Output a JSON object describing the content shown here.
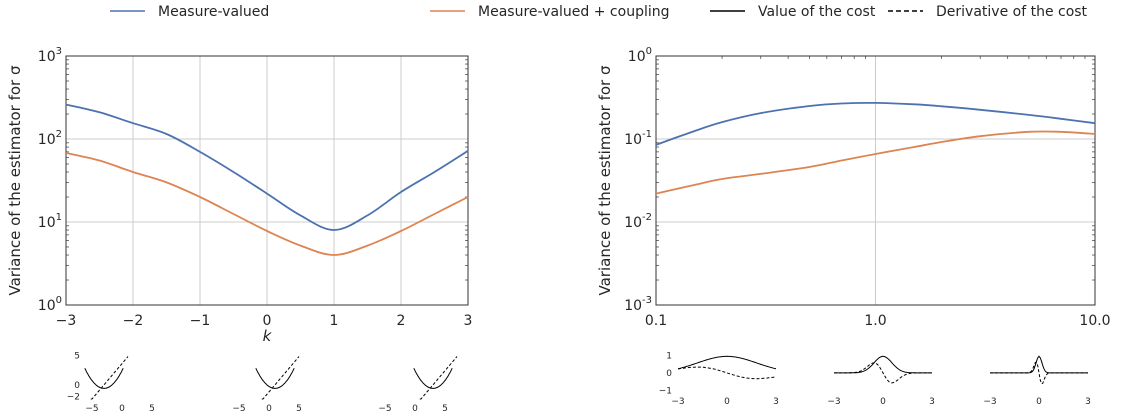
{
  "legend": {
    "entries": [
      {
        "label": "Measure-valued",
        "style": "solid",
        "color": "#4c72b0"
      },
      {
        "label": "Measure-valued + coupling",
        "style": "solid",
        "color": "#dd8452"
      },
      {
        "label": "Value of the cost",
        "style": "solid",
        "color": "#000000"
      },
      {
        "label": "Derivative of the cost",
        "style": "dashed",
        "color": "#000000"
      }
    ]
  },
  "chart_data": [
    {
      "type": "line",
      "ylabel": "Variance of the estimator for σ",
      "xlabel": "k",
      "yscale": "log",
      "xlim": [
        -3,
        3
      ],
      "ylim": [
        1,
        1000
      ],
      "x_ticks": [
        "−3",
        "−2",
        "−1",
        "0",
        "1",
        "2",
        "3"
      ],
      "y_ticks": [
        {
          "base": "10",
          "exp": "0"
        },
        {
          "base": "10",
          "exp": "1"
        },
        {
          "base": "10",
          "exp": "2"
        },
        {
          "base": "10",
          "exp": "3"
        }
      ],
      "grid": true,
      "x": [
        -3,
        -2.5,
        -2,
        -1.5,
        -1,
        -0.5,
        0,
        0.5,
        1,
        1.5,
        2,
        2.5,
        3
      ],
      "series": [
        {
          "name": "Measure-valued",
          "color": "#4c72b0",
          "values": [
            260,
            210,
            155,
            115,
            70,
            40,
            22,
            12,
            8,
            12,
            23,
            40,
            72
          ]
        },
        {
          "name": "Measure-valued + coupling",
          "color": "#dd8452",
          "values": [
            68,
            55,
            40,
            30,
            20,
            12.5,
            7.8,
            5.2,
            4,
            5.2,
            7.8,
            12.5,
            20
          ]
        }
      ],
      "insets": [
        {
          "x_ticks": [
            "−5",
            "0",
            "5"
          ],
          "y_ticks": [
            "5",
            "0",
            "−2"
          ]
        },
        {
          "x_ticks": [
            "−5",
            "0",
            "5"
          ],
          "y_ticks": []
        },
        {
          "x_ticks": [
            "−5",
            "0",
            "5"
          ],
          "y_ticks": []
        }
      ]
    },
    {
      "type": "line",
      "ylabel": "Variance of the estimator for σ",
      "xscale": "log",
      "yscale": "log",
      "xlim": [
        0.1,
        10
      ],
      "ylim": [
        0.001,
        1
      ],
      "x_ticks": [
        "0.1",
        "1.0",
        "10.0"
      ],
      "y_ticks": [
        {
          "base": "10",
          "exp": "0"
        },
        {
          "base": "10",
          "exp": "-1"
        },
        {
          "base": "10",
          "exp": "-2"
        },
        {
          "base": "10",
          "exp": "-3"
        }
      ],
      "grid": true,
      "x": [
        0.1,
        0.15,
        0.2,
        0.3,
        0.5,
        0.7,
        1,
        1.5,
        2,
        3,
        5,
        7,
        10
      ],
      "series": [
        {
          "name": "Measure-valued",
          "color": "#4c72b0",
          "values": [
            0.085,
            0.125,
            0.16,
            0.205,
            0.25,
            0.268,
            0.272,
            0.262,
            0.248,
            0.225,
            0.195,
            0.175,
            0.155
          ]
        },
        {
          "name": "Measure-valued + coupling",
          "color": "#dd8452",
          "values": [
            0.022,
            0.028,
            0.033,
            0.038,
            0.046,
            0.055,
            0.066,
            0.08,
            0.092,
            0.108,
            0.122,
            0.122,
            0.115
          ]
        }
      ],
      "insets": [
        {
          "x_ticks": [
            "−3",
            "0",
            "3"
          ],
          "y_ticks": [
            "1",
            "0",
            "−1"
          ]
        },
        {
          "x_ticks": [
            "−3",
            "0",
            "3"
          ],
          "y_ticks": []
        },
        {
          "x_ticks": [
            "−3",
            "0",
            "3"
          ],
          "y_ticks": []
        }
      ]
    }
  ]
}
